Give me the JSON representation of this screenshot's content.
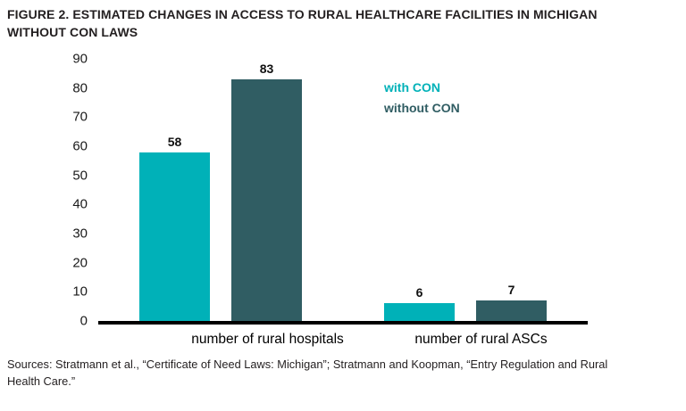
{
  "figure": {
    "sources": "Sources: Stratmann et al., “Certificate of Need Laws: Michigan”; Stratmann and Koopman, “Entry Regulation and Rural\nHealth Care.”"
  },
  "chart_data": {
    "type": "bar",
    "title": "FIGURE 2. ESTIMATED CHANGES IN ACCESS TO RURAL HEALTHCARE FACILITIES IN MICHIGAN\nWITHOUT CON LAWS",
    "categories": [
      "number of rural hospitals",
      "number of rural ASCs"
    ],
    "series": [
      {
        "name": "with CON",
        "color": "#00b1b8",
        "values": [
          58,
          6
        ]
      },
      {
        "name": "without CON",
        "color": "#305d63",
        "values": [
          83,
          7
        ]
      }
    ],
    "xlabel": "",
    "ylabel": "",
    "ylim": [
      0,
      90
    ],
    "ytick_step": 10,
    "grid": false,
    "data_labels": true,
    "legend_position": "inside-top-right"
  }
}
